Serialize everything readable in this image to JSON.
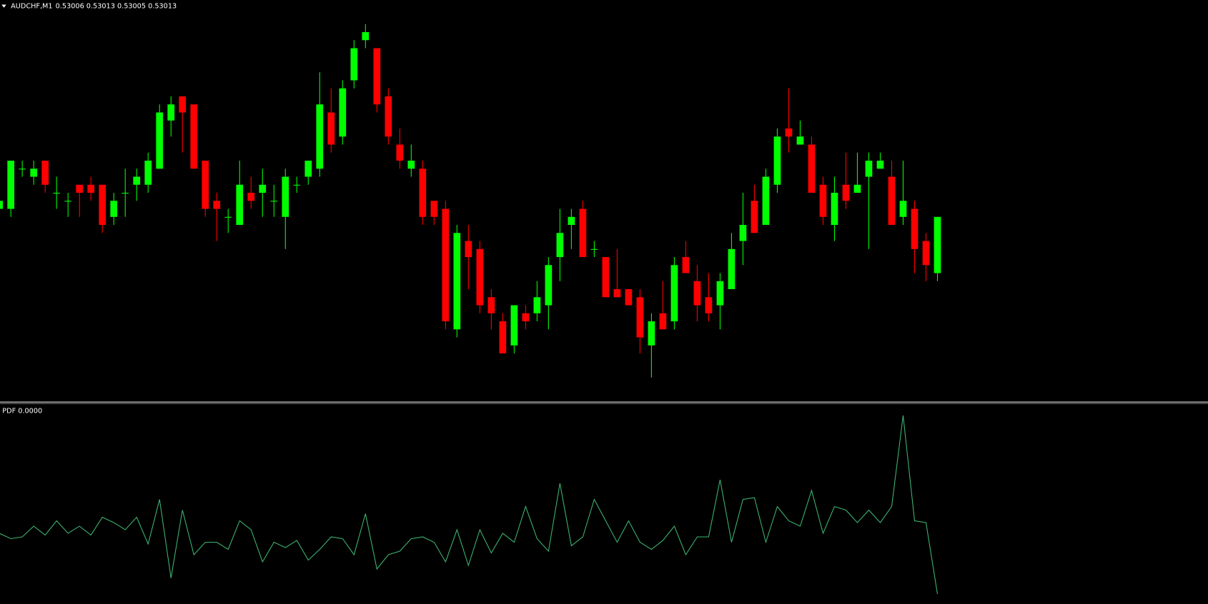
{
  "chart_data": [
    {
      "type": "candlestick",
      "title": "AUDCHF,M1",
      "subtitle": "0.53006 0.53013 0.53005 0.53013",
      "up_color": "#00ff00",
      "down_color": "#ff0000",
      "ylim": [
        0.5299,
        0.5304
      ],
      "open": [
        0.53014,
        0.53014,
        0.53019,
        0.53018,
        0.5302,
        0.53016,
        0.53015,
        0.53017,
        0.53017,
        0.53017,
        0.53013,
        0.53016,
        0.53017,
        0.53017,
        0.53019,
        0.53025,
        0.53028,
        0.53027,
        0.5302,
        0.53015,
        0.53013,
        0.53012,
        0.53016,
        0.53016,
        0.53015,
        0.53013,
        0.53017,
        0.53018,
        0.53019,
        0.53026,
        0.53023,
        0.5303,
        0.53035,
        0.53034,
        0.53028,
        0.53022,
        0.53019,
        0.53019,
        0.53015,
        0.53014,
        0.52999,
        0.5301,
        0.53009,
        0.53003,
        0.53,
        0.52997,
        0.53001,
        0.53001,
        0.53002,
        0.53008,
        0.53012,
        0.53014,
        0.53009,
        0.53008,
        0.53004,
        0.53004,
        0.53003,
        0.52997,
        0.53001,
        0.53,
        0.53008,
        0.53005,
        0.53003,
        0.53002,
        0.53004,
        0.5301,
        0.53015,
        0.53012,
        0.53017,
        0.53024,
        0.53022,
        0.53022,
        0.53017,
        0.53012,
        0.53017,
        0.53016,
        0.53018,
        0.53019,
        0.53018,
        0.53013,
        0.53014,
        0.5301,
        0.53006
      ],
      "high": [
        0.53015,
        0.5302,
        0.5302,
        0.5302,
        0.5302,
        0.53018,
        0.53016,
        0.53017,
        0.53018,
        0.53017,
        0.53016,
        0.53019,
        0.53019,
        0.53021,
        0.53027,
        0.53028,
        0.53028,
        0.53027,
        0.5302,
        0.53016,
        0.53014,
        0.5302,
        0.53018,
        0.53019,
        0.53017,
        0.53019,
        0.53018,
        0.5302,
        0.53031,
        0.53029,
        0.5303,
        0.53035,
        0.53037,
        0.53034,
        0.53029,
        0.53024,
        0.53022,
        0.5302,
        0.53015,
        0.53015,
        0.53012,
        0.53012,
        0.5301,
        0.53004,
        0.53001,
        0.53002,
        0.53002,
        0.53005,
        0.53008,
        0.53014,
        0.53014,
        0.53015,
        0.5301,
        0.53008,
        0.53009,
        0.53004,
        0.53004,
        0.53001,
        0.53005,
        0.53008,
        0.5301,
        0.53007,
        0.53006,
        0.53006,
        0.53011,
        0.53016,
        0.53017,
        0.53019,
        0.53024,
        0.53029,
        0.53025,
        0.53023,
        0.53018,
        0.53018,
        0.53021,
        0.53021,
        0.53021,
        0.53021,
        0.5302,
        0.5302,
        0.53015,
        0.53011,
        0.53013
      ],
      "low": [
        0.53013,
        0.53013,
        0.53018,
        0.53017,
        0.53016,
        0.53014,
        0.53013,
        0.53013,
        0.53015,
        0.53011,
        0.53012,
        0.53013,
        0.53015,
        0.53016,
        0.53019,
        0.53023,
        0.53021,
        0.53019,
        0.53013,
        0.5301,
        0.53011,
        0.53012,
        0.53014,
        0.53013,
        0.53013,
        0.53009,
        0.53016,
        0.53017,
        0.53018,
        0.53021,
        0.53022,
        0.53029,
        0.53034,
        0.53026,
        0.53022,
        0.53019,
        0.53018,
        0.53012,
        0.53012,
        0.52999,
        0.52998,
        0.53004,
        0.53001,
        0.52999,
        0.52996,
        0.52996,
        0.52999,
        0.53,
        0.52999,
        0.53005,
        0.53009,
        0.53008,
        0.53008,
        0.53003,
        0.53003,
        0.53002,
        0.52996,
        0.52993,
        0.52999,
        0.52999,
        0.53006,
        0.53,
        0.53,
        0.52999,
        0.53004,
        0.53007,
        0.53011,
        0.53012,
        0.53016,
        0.53021,
        0.53022,
        0.53016,
        0.53012,
        0.5301,
        0.53014,
        0.53016,
        0.53009,
        0.53019,
        0.53012,
        0.53012,
        0.53006,
        0.53005,
        0.53005
      ],
      "close": [
        0.53015,
        0.5302,
        0.53019,
        0.53019,
        0.53017,
        0.53016,
        0.53015,
        0.53016,
        0.53016,
        0.53012,
        0.53015,
        0.53016,
        0.53018,
        0.5302,
        0.53026,
        0.53027,
        0.53026,
        0.53019,
        0.53014,
        0.53014,
        0.53013,
        0.53017,
        0.53015,
        0.53017,
        0.53015,
        0.53018,
        0.53017,
        0.5302,
        0.53027,
        0.53022,
        0.53029,
        0.53034,
        0.53036,
        0.53027,
        0.53023,
        0.5302,
        0.5302,
        0.53013,
        0.53013,
        0.53,
        0.53011,
        0.53008,
        0.53002,
        0.53001,
        0.52996,
        0.53002,
        0.53,
        0.53003,
        0.53007,
        0.53011,
        0.53013,
        0.53008,
        0.53009,
        0.53003,
        0.53003,
        0.53002,
        0.52998,
        0.53,
        0.52999,
        0.53007,
        0.53006,
        0.53002,
        0.53001,
        0.53005,
        0.53009,
        0.53012,
        0.53011,
        0.53018,
        0.53023,
        0.53023,
        0.53023,
        0.53016,
        0.53013,
        0.53016,
        0.53015,
        0.53017,
        0.5302,
        0.5302,
        0.53012,
        0.53015,
        0.53009,
        0.53007,
        0.53013
      ]
    },
    {
      "type": "line",
      "title": "PDF 0.0000",
      "color": "#3cb371",
      "ylim": [
        -0.05,
        1.05
      ],
      "values": [
        0.34,
        0.31,
        0.32,
        0.38,
        0.33,
        0.41,
        0.34,
        0.38,
        0.33,
        0.43,
        0.4,
        0.36,
        0.43,
        0.28,
        0.53,
        0.09,
        0.47,
        0.22,
        0.29,
        0.29,
        0.25,
        0.41,
        0.36,
        0.18,
        0.29,
        0.26,
        0.3,
        0.19,
        0.25,
        0.32,
        0.31,
        0.22,
        0.45,
        0.14,
        0.22,
        0.24,
        0.31,
        0.32,
        0.29,
        0.18,
        0.36,
        0.16,
        0.36,
        0.23,
        0.34,
        0.29,
        0.49,
        0.31,
        0.24,
        0.62,
        0.27,
        0.32,
        0.53,
        0.41,
        0.29,
        0.41,
        0.29,
        0.25,
        0.3,
        0.38,
        0.22,
        0.32,
        0.32,
        0.64,
        0.29,
        0.53,
        0.54,
        0.29,
        0.49,
        0.41,
        0.38,
        0.58,
        0.34,
        0.49,
        0.47,
        0.4,
        0.47,
        0.4,
        0.49,
        1.0,
        0.41,
        0.4,
        0.0
      ]
    }
  ]
}
